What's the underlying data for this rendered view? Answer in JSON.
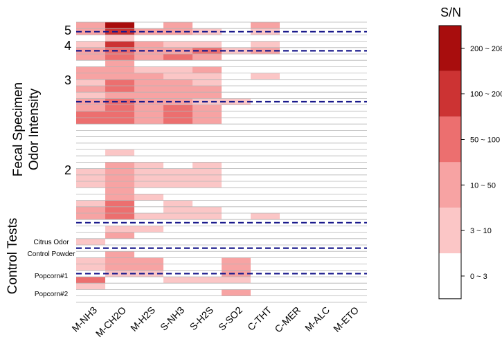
{
  "chart_data": {
    "type": "heatmap",
    "columns": [
      "M-NH3",
      "M-CH2O",
      "M-H2S",
      "S-NH3",
      "S-H2S",
      "S-SO2",
      "C-THT",
      "C-MER",
      "M-ALC",
      "M-ETO"
    ],
    "ylabel_lines": [
      "Fecal Specimen",
      "Odor Intensity"
    ],
    "control_label": "Control Tests",
    "intensity_labels": [
      "5",
      "4",
      "3",
      "2"
    ],
    "control_labels": [
      "Citrus Odor",
      "Control Powder",
      "Popcorn#1",
      "Popcorn#2"
    ],
    "row_count": 44,
    "dashed_separators_after_row": [
      1,
      4,
      12,
      31,
      35,
      39
    ],
    "dashed_color": "#1a1a8c",
    "legend": {
      "title": "S/N",
      "bins": [
        {
          "label": "200 ~ 208",
          "color": "#a80d0d"
        },
        {
          "label": "100 ~ 200",
          "color": "#cc3333"
        },
        {
          "label": "50   ~ 100",
          "color": "#ec6f6f"
        },
        {
          "label": "10   ~ 50",
          "color": "#f7a3a3"
        },
        {
          "label": "3     ~ 10",
          "color": "#fbc6c6"
        },
        {
          "label": "0     ~ 3",
          "color": "#ffffff"
        }
      ]
    },
    "cells": [
      [
        0,
        0,
        2
      ],
      [
        0,
        1,
        5
      ],
      [
        0,
        3,
        2
      ],
      [
        0,
        6,
        2
      ],
      [
        1,
        0,
        2
      ],
      [
        1,
        1,
        4
      ],
      [
        1,
        2,
        2
      ],
      [
        1,
        3,
        2
      ],
      [
        1,
        4,
        1
      ],
      [
        1,
        6,
        1
      ],
      [
        2,
        1,
        1
      ],
      [
        3,
        0,
        1
      ],
      [
        3,
        1,
        4
      ],
      [
        3,
        2,
        2
      ],
      [
        3,
        3,
        1
      ],
      [
        3,
        4,
        1
      ],
      [
        3,
        6,
        1
      ],
      [
        4,
        0,
        2
      ],
      [
        4,
        1,
        3
      ],
      [
        4,
        2,
        2
      ],
      [
        4,
        3,
        2
      ],
      [
        4,
        4,
        3
      ],
      [
        4,
        5,
        1
      ],
      [
        4,
        6,
        2
      ],
      [
        5,
        0,
        2
      ],
      [
        5,
        1,
        3
      ],
      [
        5,
        2,
        2
      ],
      [
        5,
        3,
        3
      ],
      [
        5,
        4,
        2
      ],
      [
        6,
        1,
        2
      ],
      [
        7,
        0,
        2
      ],
      [
        7,
        1,
        2
      ],
      [
        7,
        2,
        1
      ],
      [
        7,
        3,
        1
      ],
      [
        7,
        4,
        2
      ],
      [
        8,
        0,
        2
      ],
      [
        8,
        1,
        2
      ],
      [
        8,
        2,
        2
      ],
      [
        8,
        3,
        1
      ],
      [
        8,
        4,
        1
      ],
      [
        8,
        6,
        1
      ],
      [
        9,
        0,
        1
      ],
      [
        9,
        1,
        3
      ],
      [
        9,
        2,
        2
      ],
      [
        9,
        3,
        2
      ],
      [
        9,
        4,
        1
      ],
      [
        10,
        0,
        2
      ],
      [
        10,
        1,
        3
      ],
      [
        10,
        2,
        2
      ],
      [
        10,
        3,
        2
      ],
      [
        10,
        4,
        2
      ],
      [
        11,
        0,
        1
      ],
      [
        11,
        1,
        2
      ],
      [
        11,
        2,
        2
      ],
      [
        11,
        3,
        2
      ],
      [
        11,
        4,
        2
      ],
      [
        12,
        0,
        2
      ],
      [
        12,
        1,
        3
      ],
      [
        12,
        2,
        2
      ],
      [
        12,
        3,
        2
      ],
      [
        12,
        4,
        1
      ],
      [
        12,
        5,
        1
      ],
      [
        13,
        0,
        2
      ],
      [
        13,
        1,
        3
      ],
      [
        13,
        2,
        2
      ],
      [
        13,
        3,
        3
      ],
      [
        13,
        4,
        2
      ],
      [
        14,
        0,
        3
      ],
      [
        14,
        1,
        3
      ],
      [
        14,
        2,
        2
      ],
      [
        14,
        3,
        3
      ],
      [
        14,
        4,
        2
      ],
      [
        15,
        0,
        3
      ],
      [
        15,
        1,
        3
      ],
      [
        15,
        2,
        2
      ],
      [
        15,
        3,
        3
      ],
      [
        15,
        4,
        2
      ],
      [
        20,
        1,
        1
      ],
      [
        22,
        1,
        2
      ],
      [
        22,
        2,
        1
      ],
      [
        22,
        4,
        1
      ],
      [
        23,
        0,
        1
      ],
      [
        23,
        1,
        2
      ],
      [
        23,
        2,
        1
      ],
      [
        23,
        3,
        1
      ],
      [
        23,
        4,
        1
      ],
      [
        24,
        0,
        1
      ],
      [
        24,
        1,
        2
      ],
      [
        24,
        2,
        1
      ],
      [
        24,
        3,
        1
      ],
      [
        24,
        4,
        1
      ],
      [
        25,
        0,
        1
      ],
      [
        25,
        1,
        2
      ],
      [
        25,
        2,
        1
      ],
      [
        25,
        3,
        1
      ],
      [
        25,
        4,
        1
      ],
      [
        26,
        1,
        2
      ],
      [
        27,
        1,
        2
      ],
      [
        27,
        2,
        1
      ],
      [
        28,
        0,
        1
      ],
      [
        28,
        1,
        3
      ],
      [
        28,
        3,
        1
      ],
      [
        29,
        0,
        2
      ],
      [
        29,
        1,
        3
      ],
      [
        29,
        3,
        1
      ],
      [
        29,
        4,
        1
      ],
      [
        30,
        0,
        2
      ],
      [
        30,
        1,
        3
      ],
      [
        30,
        2,
        1
      ],
      [
        30,
        3,
        1
      ],
      [
        30,
        4,
        1
      ],
      [
        30,
        6,
        1
      ],
      [
        32,
        1,
        1
      ],
      [
        32,
        2,
        1
      ],
      [
        33,
        1,
        2
      ],
      [
        34,
        0,
        1
      ],
      [
        36,
        1,
        2
      ],
      [
        37,
        0,
        1
      ],
      [
        37,
        1,
        2
      ],
      [
        37,
        2,
        2
      ],
      [
        37,
        5,
        2
      ],
      [
        38,
        0,
        1
      ],
      [
        38,
        1,
        2
      ],
      [
        38,
        2,
        2
      ],
      [
        38,
        5,
        2
      ],
      [
        39,
        1,
        1
      ],
      [
        39,
        2,
        1
      ],
      [
        39,
        5,
        2
      ],
      [
        40,
        0,
        3
      ],
      [
        40,
        3,
        1
      ],
      [
        40,
        4,
        1
      ],
      [
        40,
        5,
        1
      ],
      [
        41,
        0,
        1
      ],
      [
        42,
        5,
        2
      ]
    ]
  }
}
